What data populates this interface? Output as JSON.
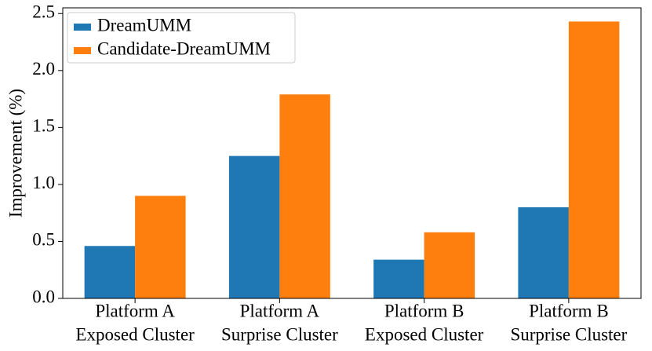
{
  "chart_data": {
    "type": "bar",
    "categories": [
      [
        "Platform A",
        "Exposed Cluster"
      ],
      [
        "Platform A",
        "Surprise Cluster"
      ],
      [
        "Platform B",
        "Exposed Cluster"
      ],
      [
        "Platform B",
        "Surprise Cluster"
      ]
    ],
    "series": [
      {
        "name": "DreamUMM",
        "color": "#1f77b4",
        "values": [
          0.46,
          1.25,
          0.34,
          0.8
        ]
      },
      {
        "name": "Candidate-DreamUMM",
        "color": "#ff7f0e",
        "values": [
          0.9,
          1.79,
          0.58,
          2.43
        ]
      }
    ],
    "y_label": "Improvement (%)",
    "ylim": [
      0,
      2.55
    ],
    "yticks": [
      {
        "value": 0,
        "label": "0.0"
      },
      0.5,
      {
        "value": 1,
        "label": "1.0"
      },
      1.5,
      {
        "value": 2,
        "label": "2.0"
      },
      2.5
    ],
    "grid": false,
    "legend": "upper left"
  }
}
